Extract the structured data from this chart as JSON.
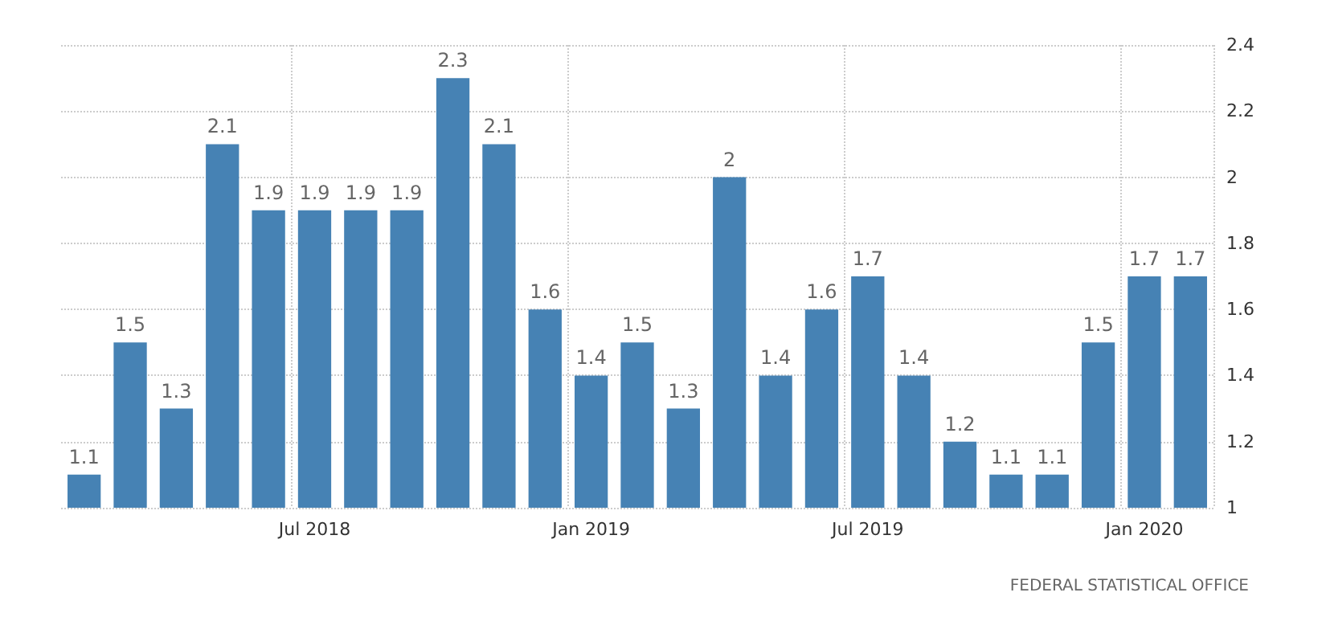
{
  "chart_data": {
    "type": "bar",
    "categories": [
      null,
      null,
      null,
      null,
      null,
      "Jul 2018",
      null,
      null,
      null,
      null,
      null,
      "Jan 2019",
      null,
      null,
      null,
      null,
      null,
      "Jul 2019",
      null,
      null,
      null,
      null,
      null,
      "Jan 2020",
      null
    ],
    "values": [
      1.1,
      1.5,
      1.3,
      2.1,
      1.9,
      1.9,
      1.9,
      1.9,
      2.3,
      2.1,
      1.6,
      1.4,
      1.5,
      1.3,
      2,
      1.4,
      1.6,
      1.7,
      1.4,
      1.2,
      1.1,
      1.1,
      1.5,
      1.7,
      1.7
    ],
    "color": "#4682b4",
    "data_labels": true,
    "grid": true,
    "ylim": [
      1,
      2.4
    ],
    "yticks": [
      1,
      1.2,
      1.4,
      1.6,
      1.8,
      2,
      2.2,
      2.4
    ],
    "annotations": [
      "FEDERAL STATISTICAL OFFICE"
    ]
  }
}
